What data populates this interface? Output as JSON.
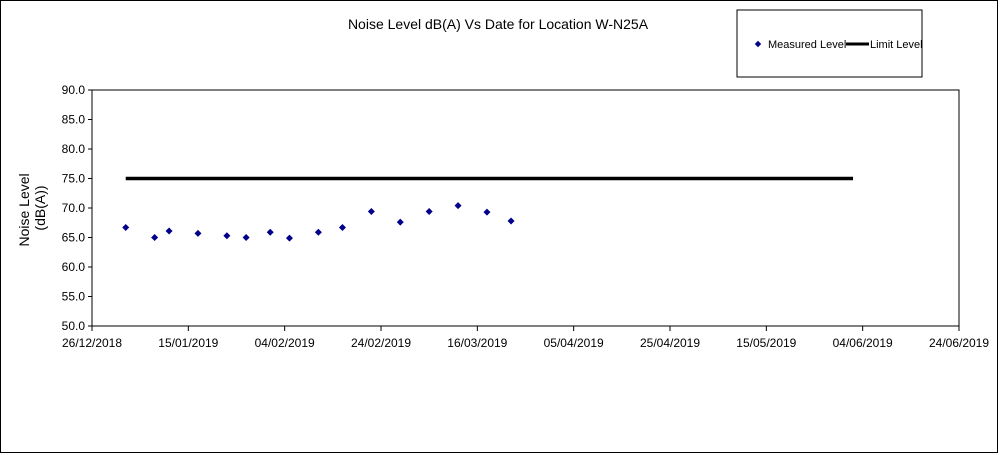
{
  "chart_data": {
    "type": "scatter",
    "title": "Noise Level dB(A) Vs Date for Location W-N25A",
    "ylabel_lines": [
      "Noise Level",
      "(dB(A))"
    ],
    "xlim": [
      "2018-12-26",
      "2019-06-24"
    ],
    "ylim": [
      50,
      90
    ],
    "x_ticks": [
      "26/12/2018",
      "15/01/2019",
      "04/02/2019",
      "24/02/2019",
      "16/03/2019",
      "05/04/2019",
      "25/04/2019",
      "15/05/2019",
      "04/06/2019",
      "24/06/2019"
    ],
    "y_ticks": [
      "90.0",
      "85.0",
      "80.0",
      "75.0",
      "70.0",
      "65.0",
      "60.0",
      "55.0",
      "50.0"
    ],
    "grid": false,
    "legend_position": "top-right",
    "series": [
      {
        "name": "Measured Level",
        "color": "#00008b",
        "marker": "diamond",
        "points": [
          {
            "x": "2019-01-02",
            "y": 66.7
          },
          {
            "x": "2019-01-08",
            "y": 65.0
          },
          {
            "x": "2019-01-11",
            "y": 66.1
          },
          {
            "x": "2019-01-17",
            "y": 65.7
          },
          {
            "x": "2019-01-23",
            "y": 65.3
          },
          {
            "x": "2019-01-27",
            "y": 65.0
          },
          {
            "x": "2019-02-01",
            "y": 65.9
          },
          {
            "x": "2019-02-05",
            "y": 64.9
          },
          {
            "x": "2019-02-11",
            "y": 65.9
          },
          {
            "x": "2019-02-16",
            "y": 66.7
          },
          {
            "x": "2019-02-22",
            "y": 69.4
          },
          {
            "x": "2019-02-28",
            "y": 67.6
          },
          {
            "x": "2019-03-06",
            "y": 69.4
          },
          {
            "x": "2019-03-12",
            "y": 70.4
          },
          {
            "x": "2019-03-18",
            "y": 69.3
          },
          {
            "x": "2019-03-23",
            "y": 67.8
          }
        ]
      },
      {
        "name": "Limit Level",
        "color": "#000000",
        "marker": "line",
        "points": [
          {
            "x": "2019-01-02",
            "y": 75.0
          },
          {
            "x": "2019-06-02",
            "y": 75.0
          }
        ]
      }
    ]
  }
}
